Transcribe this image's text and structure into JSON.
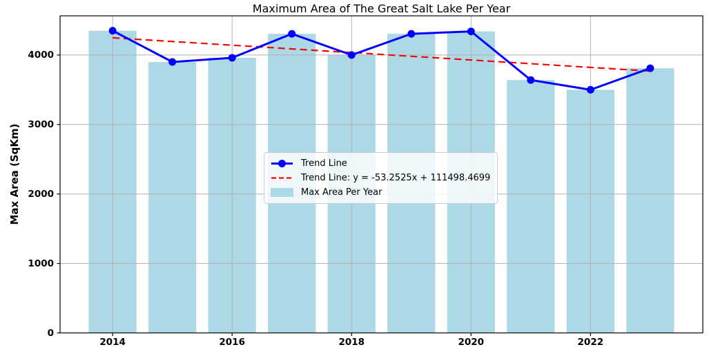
{
  "chart_data": {
    "type": "bar+line",
    "title": "Maximum Area of The Great Salt Lake Per Year",
    "xlabel": "",
    "ylabel": "Max Area (SqKm)",
    "categories": [
      2014,
      2015,
      2016,
      2017,
      2018,
      2019,
      2020,
      2021,
      2022,
      2023
    ],
    "values": [
      4350,
      3900,
      3960,
      4305,
      4000,
      4305,
      4340,
      3640,
      3500,
      3810
    ],
    "bar_series_name": "Max Area Per Year",
    "line_series_name": "Trend Line",
    "trend": {
      "label": "Trend Line: y = -53.2525x + 111498.4699",
      "slope": -53.2525,
      "intercept": 111498.4699,
      "x_start": 2014,
      "x_end": 2023
    },
    "legend": [
      {
        "label": "Trend Line",
        "key": "blue-line-with-marker"
      },
      {
        "label": "Trend Line: y = -53.2525x + 111498.4699",
        "key": "red-dashed-line"
      },
      {
        "label": "Max Area Per Year",
        "key": "lightblue-patch"
      }
    ],
    "xticks": [
      2014,
      2016,
      2018,
      2020,
      2022
    ],
    "yticks": [
      0,
      1000,
      2000,
      3000,
      4000
    ],
    "xlim": [
      2013.12,
      2023.88
    ],
    "ylim": [
      0,
      4564
    ],
    "bar_width_years": 0.8,
    "grid": true,
    "legend_position": "inside-center-left",
    "colors": {
      "bar": "#ADD8E6",
      "line": "#0000FF",
      "trend": "#FF0000",
      "grid": "#B0B0B0",
      "axis": "#000000",
      "text": "#000000",
      "background": "#FFFFFF"
    }
  }
}
